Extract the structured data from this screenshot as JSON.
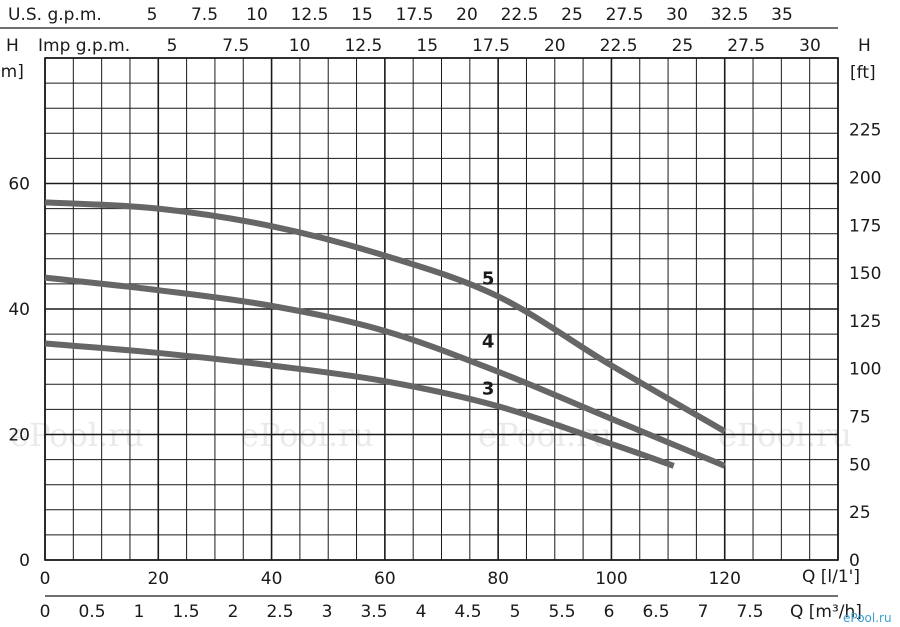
{
  "chart_data": {
    "type": "line",
    "x_axes": {
      "flow_lpm": {
        "label": "Q [l/1']",
        "ticks": [
          "0",
          "20",
          "40",
          "60",
          "80",
          "100",
          "120"
        ],
        "range": [
          0,
          140
        ]
      },
      "flow_m3h": {
        "label": "Q [m³/h]",
        "ticks": [
          "0",
          "0.5",
          "1",
          "1.5",
          "2",
          "2.5",
          "3",
          "3.5",
          "4",
          "4.5",
          "5",
          "5.5",
          "6",
          "6.5",
          "7",
          "7.5"
        ]
      },
      "us_gpm": {
        "label": "U.S. g.p.m.",
        "ticks": [
          "5",
          "7.5",
          "10",
          "12.5",
          "15",
          "17.5",
          "20",
          "22.5",
          "25",
          "27.5",
          "30",
          "32.5",
          "35"
        ]
      },
      "imp_gpm": {
        "label": "Imp g.p.m.",
        "ticks": [
          "5",
          "7.5",
          "10",
          "12.5",
          "15",
          "17.5",
          "20",
          "22.5",
          "25",
          "27.5",
          "30"
        ]
      }
    },
    "y_axes": {
      "head_m": {
        "label_top": "H",
        "unit": "[m]",
        "ticks": [
          "0",
          "20",
          "40",
          "60"
        ],
        "range": [
          0,
          80
        ]
      },
      "head_ft": {
        "label_top": "H",
        "unit": "[ft]",
        "ticks": [
          "0",
          "25",
          "50",
          "75",
          "100",
          "125",
          "150",
          "175",
          "200",
          "225"
        ]
      }
    },
    "grid": true,
    "series": [
      {
        "name": "5",
        "label_at": [
          78,
          45
        ],
        "color": "#666666",
        "points": [
          [
            0,
            57
          ],
          [
            20,
            56
          ],
          [
            40,
            53.2
          ],
          [
            60,
            48.5
          ],
          [
            80,
            42
          ],
          [
            100,
            31
          ],
          [
            120,
            20.5
          ]
        ]
      },
      {
        "name": "4",
        "label_at": [
          78,
          35
        ],
        "color": "#666666",
        "points": [
          [
            0,
            45
          ],
          [
            20,
            43
          ],
          [
            40,
            40.5
          ],
          [
            60,
            36.5
          ],
          [
            80,
            30
          ],
          [
            100,
            22.5
          ],
          [
            120,
            15
          ]
        ]
      },
      {
        "name": "3",
        "label_at": [
          78,
          27.5
        ],
        "color": "#666666",
        "points": [
          [
            0,
            34.5
          ],
          [
            20,
            33
          ],
          [
            40,
            31
          ],
          [
            60,
            28.5
          ],
          [
            80,
            24.5
          ],
          [
            100,
            18.5
          ],
          [
            111,
            15
          ]
        ]
      }
    ],
    "watermarks": [
      "ePool.ru",
      "ePool.ru",
      "ePool.ru",
      "ePool.ru",
      "ePool.ru"
    ],
    "corner_watermark": "ePool.ru"
  }
}
